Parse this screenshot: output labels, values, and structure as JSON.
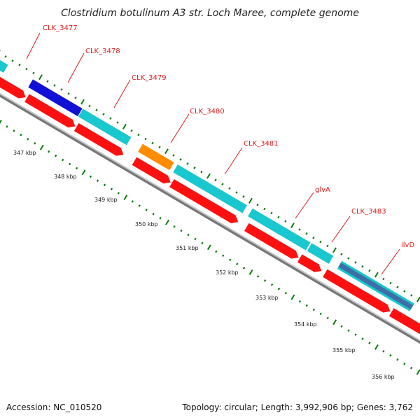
{
  "title": "Clostridium botulinum A3 str. Loch Maree, complete genome",
  "footer": {
    "accession": "Accession: NC_010520",
    "topology": "Topology: circular; Length: 3,992,906 bp; Genes: 3,762"
  },
  "gene_labels": [
    "CLK_3477",
    "CLK_3478",
    "CLK_3479",
    "CLK_3480",
    "CLK_3481",
    "glvA",
    "CLK_3483",
    "ilvD"
  ],
  "tick_labels": [
    "347 kbp",
    "348 kbp",
    "349 kbp",
    "350 kbp",
    "351 kbp",
    "352 kbp",
    "353 kbp",
    "354 kbp",
    "355 kbp",
    "356 kbp"
  ],
  "colors": {
    "cds_forward": "#19c7cf",
    "cds_reverse": "#ff1010",
    "cds_blue": "#1010d6",
    "cds_orange": "#ff8c00",
    "cds_steel": "#3d6fa6",
    "label_line": "#e21a1a",
    "tick": "#0a7a0a",
    "backbone": "#999999"
  }
}
